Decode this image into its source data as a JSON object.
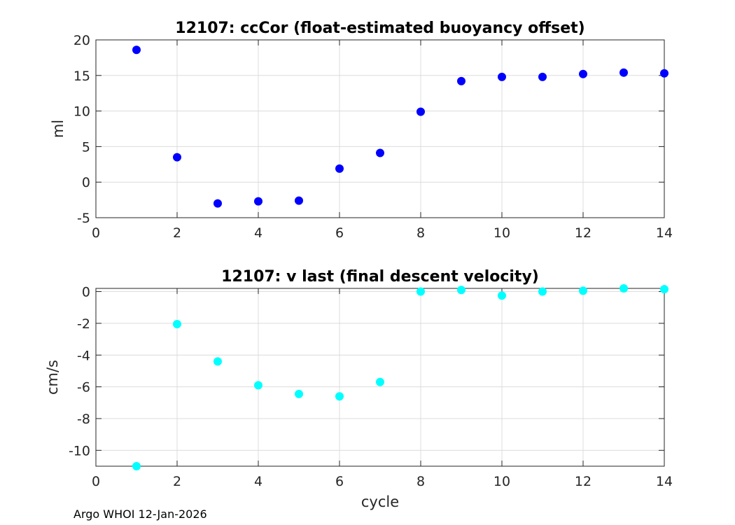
{
  "chart_data": [
    {
      "type": "scatter",
      "title": "12107: ccCor (float-estimated buoyancy offset)",
      "xlabel": "",
      "ylabel": "ml",
      "xlim": [
        0,
        14
      ],
      "ylim": [
        -5,
        20
      ],
      "xticks": [
        0,
        2,
        4,
        6,
        8,
        10,
        12,
        14
      ],
      "yticks": [
        -5,
        0,
        5,
        10,
        15,
        20
      ],
      "ytick_labels": [
        "-5",
        "0",
        "5",
        "10",
        "15",
        "20"
      ],
      "grid": true,
      "color": "#0000ff",
      "series": [
        {
          "name": "ccCor",
          "x": [
            1,
            2,
            3,
            4,
            5,
            6,
            7,
            8,
            9,
            10,
            11,
            12,
            13,
            14
          ],
          "y": [
            18.6,
            3.5,
            -3.0,
            -2.7,
            -2.6,
            1.9,
            4.1,
            9.9,
            14.2,
            14.8,
            14.8,
            15.2,
            15.4,
            15.3
          ]
        }
      ]
    },
    {
      "type": "scatter",
      "title": "12107: v last (final descent velocity)",
      "xlabel": "cycle",
      "ylabel": "cm/s",
      "xlim": [
        0,
        14
      ],
      "ylim": [
        -11,
        0.2
      ],
      "xticks": [
        0,
        2,
        4,
        6,
        8,
        10,
        12,
        14
      ],
      "yticks": [
        -10,
        -8,
        -6,
        -4,
        -2,
        0
      ],
      "ytick_labels": [
        "-10",
        "-8",
        "-6",
        "-4",
        "-2",
        "0"
      ],
      "grid": true,
      "color": "#00ffff",
      "series": [
        {
          "name": "v last",
          "x": [
            1,
            2,
            3,
            4,
            5,
            6,
            7,
            8,
            9,
            10,
            11,
            12,
            13,
            14
          ],
          "y": [
            -11.0,
            -2.05,
            -4.4,
            -5.9,
            -6.45,
            -6.6,
            -5.7,
            0.0,
            0.1,
            -0.25,
            0.0,
            0.05,
            0.2,
            0.15
          ]
        }
      ]
    }
  ],
  "footer": "Argo WHOI 12-Jan-2026"
}
